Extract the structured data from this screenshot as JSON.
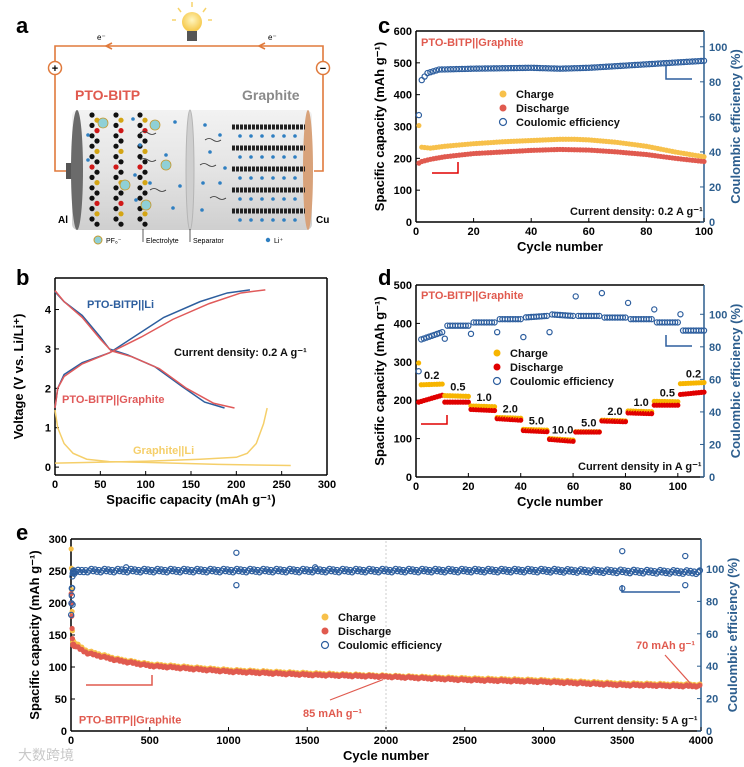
{
  "panel_labels": [
    "a",
    "b",
    "c",
    "d",
    "e"
  ],
  "schematic": {
    "cathode_label": "PTO-BITP",
    "anode_label": "Graphite",
    "left_collector": "Al",
    "right_collector": "Cu",
    "electron_left": "e⁻",
    "electron_right": "e⁻",
    "positive_terminal": "+",
    "negative_terminal": "−",
    "legend_anion": "PF₆⁻",
    "legend_electrolyte": "Electrolyte",
    "legend_separator": "Separator",
    "legend_li": "Li⁺",
    "colors": {
      "circuit": "#e07a3c",
      "cathode_text": "#e05a4f",
      "anode_text": "#8a8a8a",
      "li": "#2f7fc1"
    }
  },
  "watermark": "大数跨境",
  "chart_data": [
    {
      "id": "b",
      "type": "line",
      "xlabel": "Spacific capacity (mAh g⁻¹)",
      "ylabel": "Voltage (V vs. Li/Li⁺)",
      "xlim": [
        0,
        300
      ],
      "ylim": [
        -0.2,
        4.8
      ],
      "xticks": [
        "0",
        "50",
        "100",
        "150",
        "200",
        "250",
        "300"
      ],
      "yticks": [
        "0",
        "1",
        "2",
        "3",
        "4"
      ],
      "annotation": "Current density: 0.2 A g⁻¹",
      "series": [
        {
          "name": "PTO-BITP||Li",
          "label": "PTO-BITP||Li",
          "color": "#2d5e9e",
          "segments": [
            [
              [
                0,
                4.45
              ],
              [
                10,
                4.2
              ],
              [
                30,
                3.85
              ],
              [
                50,
                3.3
              ],
              [
                60,
                3.0
              ],
              [
                80,
                2.85
              ],
              [
                110,
                2.55
              ],
              [
                140,
                2.05
              ],
              [
                165,
                1.65
              ],
              [
                187,
                1.5
              ]
            ],
            [
              [
                0,
                1.5
              ],
              [
                3,
                2.0
              ],
              [
                10,
                2.35
              ],
              [
                30,
                2.65
              ],
              [
                60,
                2.9
              ],
              [
                90,
                3.35
              ],
              [
                120,
                3.8
              ],
              [
                160,
                4.2
              ],
              [
                190,
                4.42
              ],
              [
                215,
                4.5
              ]
            ]
          ]
        },
        {
          "name": "PTO-BITP||Graphite",
          "label": "PTO-BITP||Graphite",
          "color": "#e05a5a",
          "segments": [
            [
              [
                0,
                4.48
              ],
              [
                10,
                4.2
              ],
              [
                30,
                3.8
              ],
              [
                50,
                3.25
              ],
              [
                62,
                2.95
              ],
              [
                85,
                2.8
              ],
              [
                115,
                2.5
              ],
              [
                145,
                2.0
              ],
              [
                175,
                1.62
              ],
              [
                198,
                1.5
              ]
            ],
            [
              [
                0,
                1.5
              ],
              [
                3,
                2.0
              ],
              [
                10,
                2.3
              ],
              [
                30,
                2.62
              ],
              [
                60,
                2.9
              ],
              [
                95,
                3.3
              ],
              [
                130,
                3.75
              ],
              [
                170,
                4.15
              ],
              [
                205,
                4.42
              ],
              [
                232,
                4.5
              ]
            ]
          ]
        },
        {
          "name": "Graphite||Li",
          "label": "Graphite||Li",
          "color": "#f5cf6a",
          "segments": [
            [
              [
                0,
                1.45
              ],
              [
                3,
                1.0
              ],
              [
                10,
                0.6
              ],
              [
                20,
                0.35
              ],
              [
                35,
                0.2
              ],
              [
                60,
                0.14
              ],
              [
                100,
                0.12
              ],
              [
                180,
                0.07
              ],
              [
                260,
                0.04
              ]
            ],
            [
              [
                0,
                0.1
              ],
              [
                40,
                0.12
              ],
              [
                100,
                0.15
              ],
              [
                160,
                0.2
              ],
              [
                200,
                0.25
              ],
              [
                212,
                0.35
              ],
              [
                222,
                0.6
              ],
              [
                230,
                1.1
              ],
              [
                234,
                1.5
              ]
            ]
          ]
        }
      ]
    },
    {
      "id": "c",
      "type": "scatter",
      "title": "PTO-BITP||Graphite",
      "xlabel": "Cycle number",
      "ylabel": "Spacific capacity (mAh g⁻¹)",
      "y2label": "Coulombic efficiency (%)",
      "xlim": [
        0,
        100
      ],
      "ylim": [
        0,
        600
      ],
      "y2lim": [
        0,
        109
      ],
      "xticks": [
        "0",
        "20",
        "40",
        "60",
        "80",
        "100"
      ],
      "yticks": [
        "0",
        "100",
        "200",
        "300",
        "400",
        "500",
        "600"
      ],
      "y2ticks": [
        "0",
        "20",
        "40",
        "60",
        "80",
        "100"
      ],
      "annotation": "Current density: 0.2 A g⁻¹",
      "series": [
        {
          "name": "Charge",
          "color": "#f7c04a",
          "points": [
            [
              1,
              303
            ],
            [
              2,
              235
            ],
            [
              5,
              232
            ],
            [
              10,
              238
            ],
            [
              20,
              246
            ],
            [
              30,
              252
            ],
            [
              40,
              256
            ],
            [
              50,
              260
            ],
            [
              55,
              260
            ],
            [
              60,
              258
            ],
            [
              70,
              250
            ],
            [
              80,
              238
            ],
            [
              90,
              220
            ],
            [
              100,
              205
            ]
          ]
        },
        {
          "name": "Discharge",
          "color": "#e05a4f",
          "points": [
            [
              1,
              185
            ],
            [
              2,
              190
            ],
            [
              5,
              197
            ],
            [
              10,
              205
            ],
            [
              20,
              215
            ],
            [
              30,
              220
            ],
            [
              40,
              225
            ],
            [
              50,
              228
            ],
            [
              60,
              226
            ],
            [
              70,
              220
            ],
            [
              80,
              212
            ],
            [
              90,
              200
            ],
            [
              100,
              190
            ]
          ]
        },
        {
          "name": "Coulomic efficiency",
          "color": "#2d5e9e",
          "axis": "right",
          "open": true,
          "points": [
            [
              1,
              61
            ],
            [
              2,
              81
            ],
            [
              4,
              85
            ],
            [
              8,
              87
            ],
            [
              20,
              87.5
            ],
            [
              40,
              88
            ],
            [
              50,
              87.5
            ],
            [
              60,
              88
            ],
            [
              70,
              89
            ],
            [
              80,
              90
            ],
            [
              90,
              91
            ],
            [
              100,
              92
            ]
          ]
        }
      ]
    },
    {
      "id": "d",
      "type": "scatter",
      "title": "PTO-BITP||Graphite",
      "xlabel": "Cycle number",
      "ylabel": "Spacific capacity (mAh g⁻¹)",
      "y2label": "Coulombic efficiency (%)",
      "xlim": [
        0,
        110
      ],
      "ylim": [
        0,
        500
      ],
      "y2lim": [
        0,
        118
      ],
      "xticks": [
        "0",
        "20",
        "40",
        "60",
        "80",
        "100"
      ],
      "yticks": [
        "0",
        "100",
        "200",
        "300",
        "400",
        "500"
      ],
      "y2ticks": [
        "0",
        "20",
        "40",
        "60",
        "80",
        "100"
      ],
      "annotation": "Current density in A g⁻¹",
      "legend": [
        "Charge",
        "Discharge",
        "Coulomic efficiency"
      ],
      "colors": {
        "charge": "#f7b500",
        "discharge": "#e00000",
        "ce": "#2d5e9e"
      },
      "steps": [
        {
          "rate": "0.2",
          "charge": [
            240,
            242
          ],
          "discharge": [
            195,
            213
          ],
          "ce": [
            84,
            89
          ]
        },
        {
          "rate": "0.5",
          "charge": [
            212,
            210
          ],
          "discharge": [
            195,
            195
          ],
          "ce": [
            93,
            93
          ]
        },
        {
          "rate": "1.0",
          "charge": [
            185,
            183
          ],
          "discharge": [
            176,
            173
          ],
          "ce": [
            95,
            95
          ]
        },
        {
          "rate": "2.0",
          "charge": [
            155,
            153
          ],
          "discharge": [
            152,
            148
          ],
          "ce": [
            97,
            97
          ]
        },
        {
          "rate": "5.0",
          "charge": [
            124,
            122
          ],
          "discharge": [
            121,
            118
          ],
          "ce": [
            98,
            99
          ]
        },
        {
          "rate": "10.0",
          "charge": [
            100,
            96
          ],
          "discharge": [
            98,
            93
          ],
          "ce": [
            100,
            99
          ]
        },
        {
          "rate": "5.0",
          "charge": [
            118,
            118
          ],
          "discharge": [
            117,
            117
          ],
          "ce": [
            99,
            99
          ]
        },
        {
          "rate": "2.0",
          "charge": [
            148,
            146
          ],
          "discharge": [
            146,
            144
          ],
          "ce": [
            98,
            98
          ]
        },
        {
          "rate": "1.0",
          "charge": [
            172,
            170
          ],
          "discharge": [
            167,
            165
          ],
          "ce": [
            97,
            97
          ]
        },
        {
          "rate": "0.5",
          "charge": [
            197,
            196
          ],
          "discharge": [
            187,
            187
          ],
          "ce": [
            95,
            95
          ]
        },
        {
          "rate": "0.2",
          "charge": [
            243,
            246
          ],
          "discharge": [
            215,
            221
          ],
          "ce": [
            90,
            90
          ]
        }
      ],
      "first_cycle": {
        "charge": 297,
        "ce": 65
      },
      "ce_outliers": [
        [
          11,
          85
        ],
        [
          21,
          88
        ],
        [
          31,
          89
        ],
        [
          41,
          86
        ],
        [
          51,
          89
        ],
        [
          61,
          111
        ],
        [
          71,
          113
        ],
        [
          81,
          107
        ],
        [
          91,
          103
        ],
        [
          101,
          100
        ]
      ]
    },
    {
      "id": "e",
      "type": "scatter",
      "title": "PTO-BITP||Graphite",
      "xlabel": "Cycle number",
      "ylabel": "Spacific capacity (mAh g⁻¹)",
      "y2label": "Coulombic efficiency (%)",
      "xlim": [
        0,
        4000
      ],
      "ylim": [
        0,
        300
      ],
      "y2lim": [
        0,
        118.5
      ],
      "xticks": [
        "0",
        "500",
        "1000",
        "1500",
        "2000",
        "2500",
        "3000",
        "3500",
        "4000"
      ],
      "yticks": [
        "0",
        "50",
        "100",
        "150",
        "200",
        "250",
        "300"
      ],
      "y2ticks": [
        "0",
        "20",
        "40",
        "60",
        "80",
        "100"
      ],
      "annotation": "Current density: 5 A g⁻¹",
      "callouts": [
        {
          "text": "85 mAh g⁻¹",
          "at": [
            2000,
            85
          ]
        },
        {
          "text": "70 mAh g⁻¹",
          "at": [
            3950,
            70
          ]
        }
      ],
      "series": [
        {
          "name": "Charge",
          "color": "#f7c04a",
          "points": [
            [
              1,
              285
            ],
            [
              10,
              140
            ],
            [
              100,
              125
            ],
            [
              300,
              112
            ],
            [
              500,
              104
            ],
            [
              1000,
              95
            ],
            [
              1500,
              90
            ],
            [
              2000,
              86
            ],
            [
              2500,
              82
            ],
            [
              3000,
              79
            ],
            [
              3500,
              74
            ],
            [
              4000,
              72
            ]
          ]
        },
        {
          "name": "Discharge",
          "color": "#e05a4f",
          "points": [
            [
              1,
              215
            ],
            [
              10,
              135
            ],
            [
              100,
              122
            ],
            [
              300,
              110
            ],
            [
              500,
              102
            ],
            [
              1000,
              93
            ],
            [
              1500,
              88
            ],
            [
              2000,
              85
            ],
            [
              2500,
              80
            ],
            [
              3000,
              77
            ],
            [
              3500,
              72
            ],
            [
              4000,
              70
            ]
          ]
        },
        {
          "name": "Coulomic efficiency",
          "color": "#2d5e9e",
          "axis": "right",
          "open": true,
          "points": [
            [
              1,
              72
            ],
            [
              10,
              98
            ],
            [
              100,
              99
            ],
            [
              1000,
              99
            ],
            [
              2000,
              99
            ],
            [
              3000,
              99
            ],
            [
              4000,
              98
            ]
          ]
        }
      ],
      "ce_outliers": [
        [
          5,
          88
        ],
        [
          10,
          78
        ],
        [
          1050,
          110
        ],
        [
          1050,
          90
        ],
        [
          3500,
          111
        ],
        [
          3500,
          88
        ],
        [
          3900,
          108
        ],
        [
          3900,
          90
        ],
        [
          350,
          101
        ],
        [
          1550,
          101
        ]
      ]
    }
  ]
}
